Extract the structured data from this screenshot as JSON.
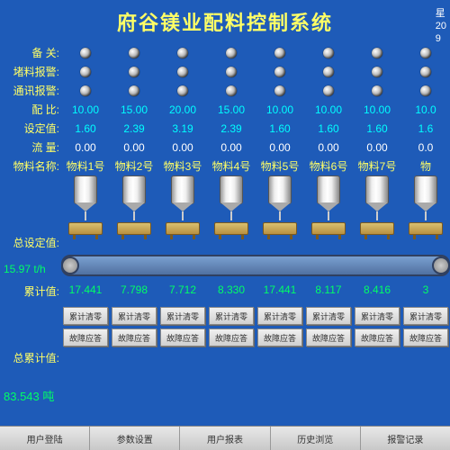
{
  "title": "府谷镁业配料控制系统",
  "topright": {
    "l1": "星",
    "l2": "20",
    "l3": "9"
  },
  "row_labels": {
    "spare": "备 关:",
    "jam": "堵料报警:",
    "comm": "通讯报警:",
    "ratio": "配 比:",
    "setval": "设定值:",
    "flow": "流 量:",
    "matname": "物料名称:"
  },
  "side_labels": {
    "totalset": "总设定值:",
    "accum": "累计值:",
    "totalaccum": "总累计值:"
  },
  "flow_rate": {
    "value": "15.97",
    "unit": "t/h"
  },
  "total_accum": {
    "value": "83.543",
    "unit": "吨"
  },
  "columns": [
    {
      "ratio": "10.00",
      "set": "1.60",
      "flow": "0.00",
      "name": "物料1号",
      "accum": "17.441",
      "btn1": "累计清零",
      "btn2": "故障应答"
    },
    {
      "ratio": "15.00",
      "set": "2.39",
      "flow": "0.00",
      "name": "物料2号",
      "accum": "7.798",
      "btn1": "累计清零",
      "btn2": "故障应答"
    },
    {
      "ratio": "20.00",
      "set": "3.19",
      "flow": "0.00",
      "name": "物料3号",
      "accum": "7.712",
      "btn1": "累计清零",
      "btn2": "故障应答"
    },
    {
      "ratio": "15.00",
      "set": "2.39",
      "flow": "0.00",
      "name": "物料4号",
      "accum": "8.330",
      "btn1": "累计清零",
      "btn2": "故障应答"
    },
    {
      "ratio": "10.00",
      "set": "1.60",
      "flow": "0.00",
      "name": "物料5号",
      "accum": "17.441",
      "btn1": "累计清零",
      "btn2": "故障应答"
    },
    {
      "ratio": "10.00",
      "set": "1.60",
      "flow": "0.00",
      "name": "物料6号",
      "accum": "8.117",
      "btn1": "累计清零",
      "btn2": "故障应答"
    },
    {
      "ratio": "10.00",
      "set": "1.60",
      "flow": "0.00",
      "name": "物料7号",
      "accum": "8.416",
      "btn1": "累计清零",
      "btn2": "故障应答"
    },
    {
      "ratio": "10.0",
      "set": "1.6",
      "flow": "0.0",
      "name": "物",
      "accum": "3",
      "btn1": "累计清零",
      "btn2": "故障应答"
    }
  ],
  "bottom": [
    "用户登陆",
    "参数设置",
    "用户报表",
    "历史浏览",
    "报警记录"
  ],
  "colors": {
    "bg": "#1e5bb8",
    "label": "#ffff66",
    "cyan": "#00ffff",
    "green": "#00ff66"
  }
}
